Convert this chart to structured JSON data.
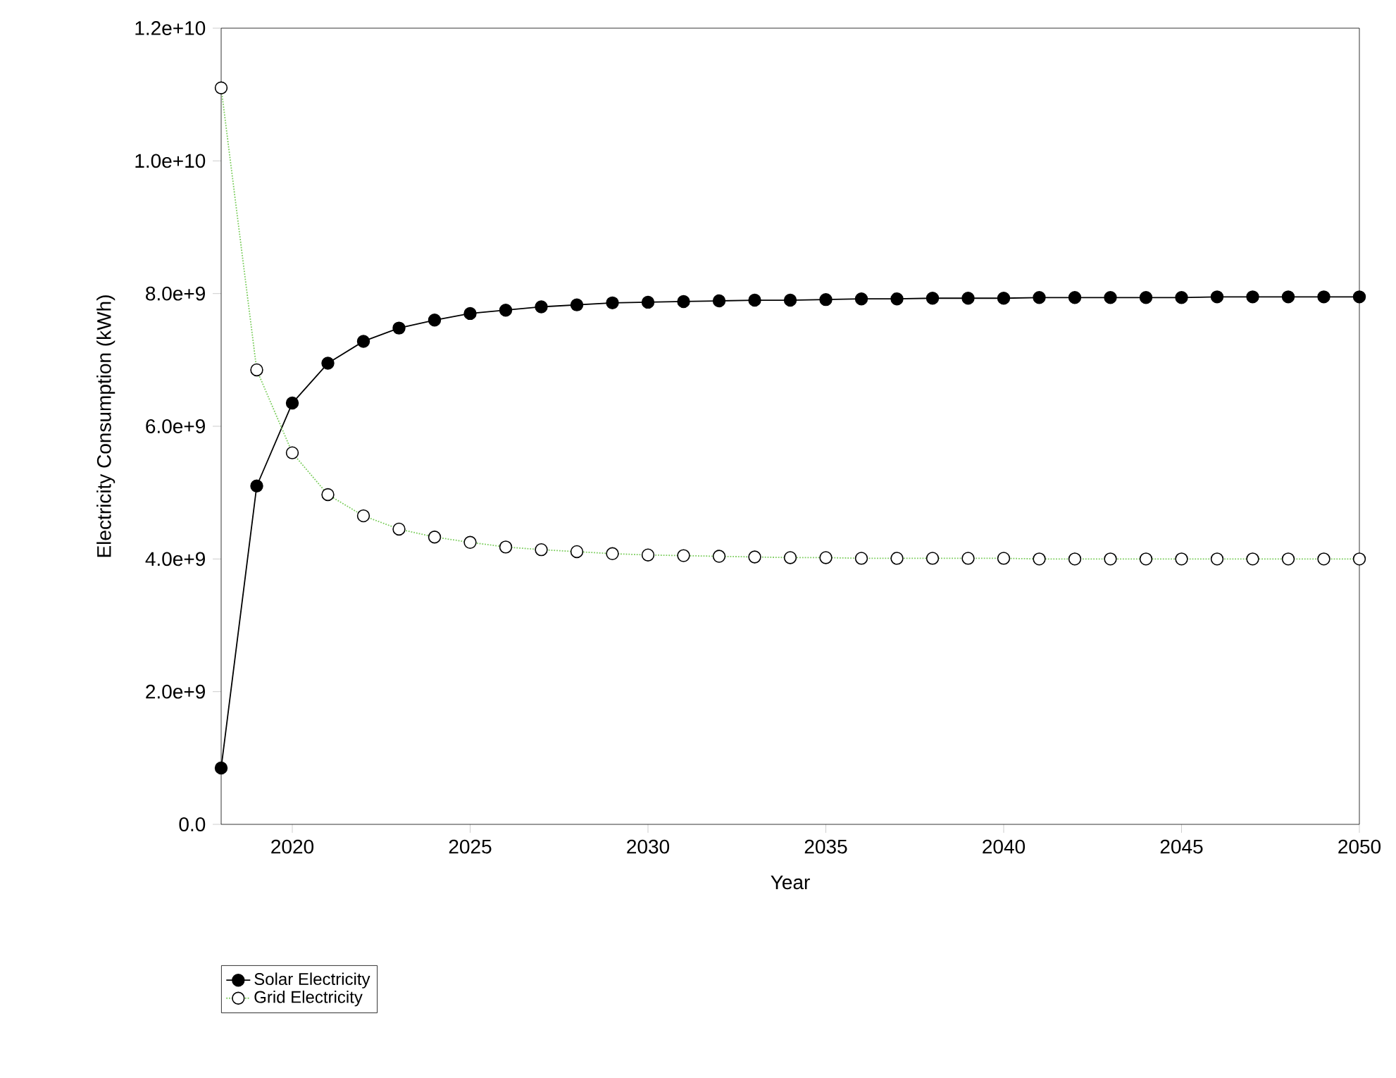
{
  "chart_data": {
    "type": "line",
    "xlabel": "Year",
    "ylabel": "Electricity Consumption (kWh)",
    "x": [
      2018,
      2019,
      2020,
      2021,
      2022,
      2023,
      2024,
      2025,
      2026,
      2027,
      2028,
      2029,
      2030,
      2031,
      2032,
      2033,
      2034,
      2035,
      2036,
      2037,
      2038,
      2039,
      2040,
      2041,
      2042,
      2043,
      2044,
      2045,
      2046,
      2047,
      2048,
      2049,
      2050
    ],
    "series": [
      {
        "name": "Solar Electricity",
        "color": "#000000",
        "line_style": "solid",
        "values": [
          850000000.0,
          5100000000.0,
          6350000000.0,
          6950000000.0,
          7280000000.0,
          7480000000.0,
          7600000000.0,
          7700000000.0,
          7750000000.0,
          7800000000.0,
          7830000000.0,
          7860000000.0,
          7870000000.0,
          7880000000.0,
          7890000000.0,
          7900000000.0,
          7900000000.0,
          7910000000.0,
          7920000000.0,
          7920000000.0,
          7930000000.0,
          7930000000.0,
          7930000000.0,
          7940000000.0,
          7940000000.0,
          7940000000.0,
          7940000000.0,
          7940000000.0,
          7950000000.0,
          7950000000.0,
          7950000000.0,
          7950000000.0,
          7950000000.0
        ]
      },
      {
        "name": "Grid Electricity",
        "color": "#7ccd5e",
        "line_style": "dotted",
        "values": [
          11100000000.0,
          6850000000.0,
          5600000000.0,
          4970000000.0,
          4650000000.0,
          4450000000.0,
          4330000000.0,
          4250000000.0,
          4180000000.0,
          4140000000.0,
          4110000000.0,
          4080000000.0,
          4060000000.0,
          4050000000.0,
          4040000000.0,
          4030000000.0,
          4020000000.0,
          4020000000.0,
          4010000000.0,
          4010000000.0,
          4010000000.0,
          4010000000.0,
          4010000000.0,
          4000000000.0,
          4000000000.0,
          4000000000.0,
          4000000000.0,
          4000000000.0,
          4000000000.0,
          4000000000.0,
          4000000000.0,
          4000000000.0,
          4000000000.0
        ]
      }
    ],
    "xlim": [
      2018,
      2050
    ],
    "xticks": [
      2020,
      2025,
      2030,
      2035,
      2040,
      2045,
      2050
    ],
    "ylim": [
      0,
      12000000000.0
    ],
    "yticks": [
      {
        "value": 0,
        "label": "0.0"
      },
      {
        "value": 2000000000.0,
        "label": "2.0e+9"
      },
      {
        "value": 4000000000.0,
        "label": "4.0e+9"
      },
      {
        "value": 6000000000.0,
        "label": "6.0e+9"
      },
      {
        "value": 8000000000.0,
        "label": "8.0e+9"
      },
      {
        "value": 10000000000.0,
        "label": "1.0e+10"
      },
      {
        "value": 12000000000.0,
        "label": "1.2e+10"
      }
    ],
    "grid": false,
    "legend": "bottom left",
    "marker": "circle"
  }
}
